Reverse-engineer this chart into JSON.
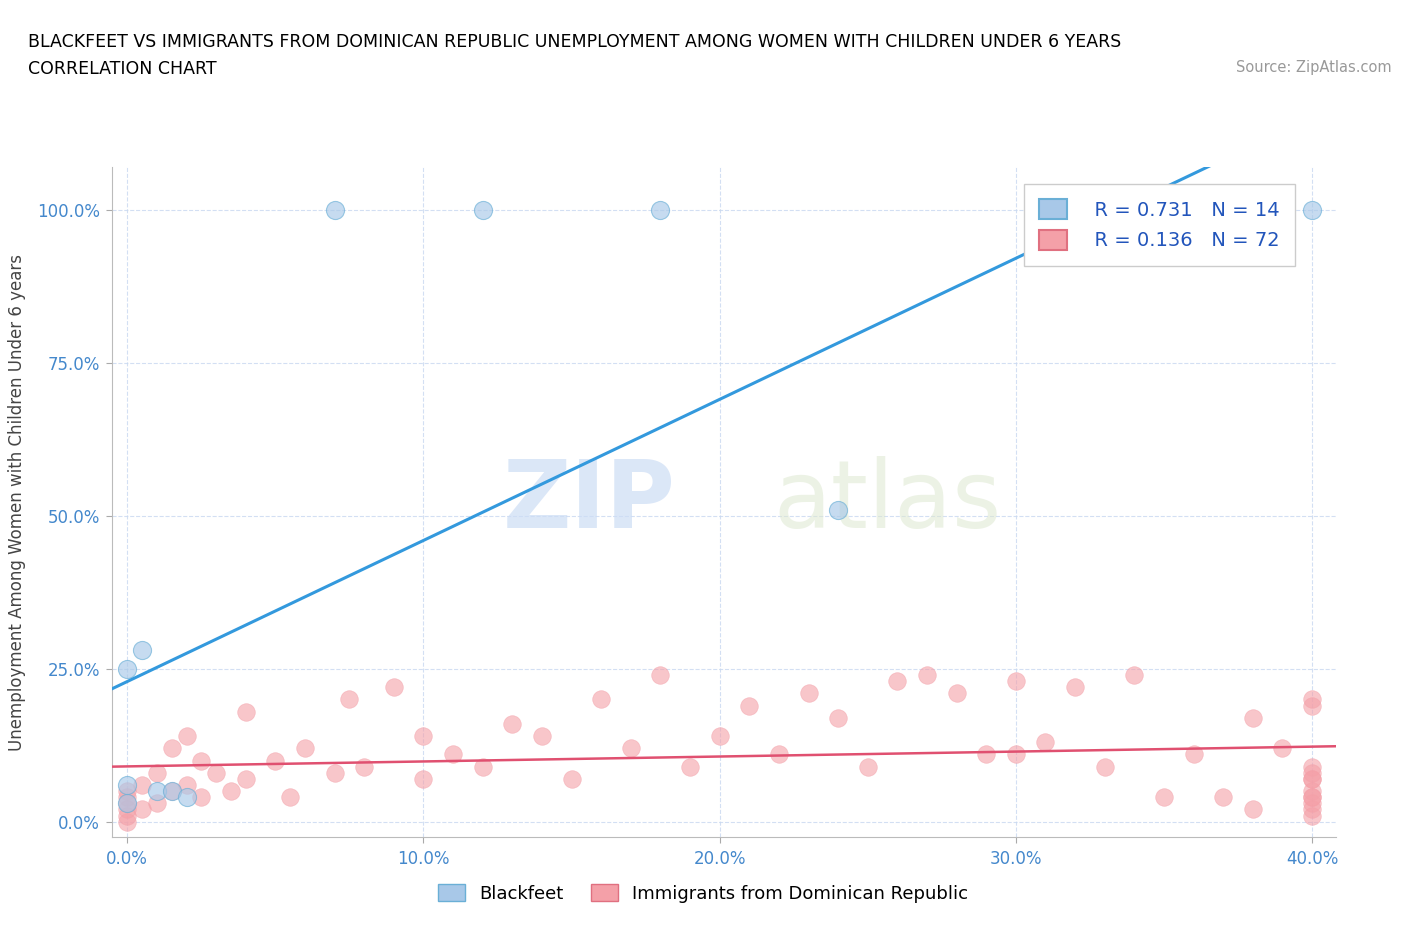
{
  "title_line1": "BLACKFEET VS IMMIGRANTS FROM DOMINICAN REPUBLIC UNEMPLOYMENT AMONG WOMEN WITH CHILDREN UNDER 6 YEARS",
  "title_line2": "CORRELATION CHART",
  "source": "Source: ZipAtlas.com",
  "ylabel": "Unemployment Among Women with Children Under 6 years",
  "xmin": -0.005,
  "xmax": 0.408,
  "ymin": -0.025,
  "ymax": 1.07,
  "xticks": [
    0.0,
    0.1,
    0.2,
    0.3,
    0.4
  ],
  "xtick_labels": [
    "0.0%",
    "10.0%",
    "20.0%",
    "30.0%",
    "40.0%"
  ],
  "yticks": [
    0.0,
    0.25,
    0.5,
    0.75,
    1.0
  ],
  "ytick_labels": [
    "0.0%",
    "25.0%",
    "50.0%",
    "75.0%",
    "100.0%"
  ],
  "blue_color": "#a8c8e8",
  "blue_edge": "#6aafd6",
  "pink_color": "#f4a0a8",
  "pink_edge": "#e07080",
  "trend_blue": "#3399dd",
  "trend_pink": "#e05070",
  "R_blue": 0.731,
  "N_blue": 14,
  "R_pink": 0.136,
  "N_pink": 72,
  "watermark_zip": "ZIP",
  "watermark_atlas": "atlas",
  "blue_scatter_x": [
    0.0,
    0.0,
    0.0,
    0.005,
    0.01,
    0.015,
    0.02,
    0.07,
    0.12,
    0.18,
    0.24,
    0.32,
    0.38,
    0.4
  ],
  "blue_scatter_y": [
    0.03,
    0.06,
    0.25,
    0.28,
    0.05,
    0.05,
    0.04,
    1.0,
    1.0,
    1.0,
    0.51,
    1.0,
    1.0,
    1.0
  ],
  "pink_scatter_x": [
    0.0,
    0.0,
    0.0,
    0.0,
    0.0,
    0.0,
    0.005,
    0.005,
    0.01,
    0.01,
    0.015,
    0.015,
    0.02,
    0.02,
    0.025,
    0.025,
    0.03,
    0.035,
    0.04,
    0.04,
    0.05,
    0.055,
    0.06,
    0.07,
    0.075,
    0.08,
    0.09,
    0.1,
    0.1,
    0.11,
    0.12,
    0.13,
    0.14,
    0.15,
    0.16,
    0.17,
    0.18,
    0.19,
    0.2,
    0.21,
    0.22,
    0.23,
    0.24,
    0.25,
    0.26,
    0.27,
    0.28,
    0.29,
    0.3,
    0.3,
    0.31,
    0.32,
    0.33,
    0.34,
    0.35,
    0.36,
    0.37,
    0.38,
    0.38,
    0.39,
    0.4,
    0.4,
    0.4,
    0.4,
    0.4,
    0.4,
    0.4,
    0.4,
    0.4,
    0.4,
    0.4,
    0.4
  ],
  "pink_scatter_y": [
    0.0,
    0.01,
    0.02,
    0.03,
    0.04,
    0.05,
    0.02,
    0.06,
    0.03,
    0.08,
    0.05,
    0.12,
    0.06,
    0.14,
    0.04,
    0.1,
    0.08,
    0.05,
    0.07,
    0.18,
    0.1,
    0.04,
    0.12,
    0.08,
    0.2,
    0.09,
    0.22,
    0.14,
    0.07,
    0.11,
    0.09,
    0.16,
    0.14,
    0.07,
    0.2,
    0.12,
    0.24,
    0.09,
    0.14,
    0.19,
    0.11,
    0.21,
    0.17,
    0.09,
    0.23,
    0.24,
    0.21,
    0.11,
    0.11,
    0.23,
    0.13,
    0.22,
    0.09,
    0.24,
    0.04,
    0.11,
    0.04,
    0.17,
    0.02,
    0.12,
    0.04,
    0.05,
    0.07,
    0.02,
    0.07,
    0.01,
    0.19,
    0.09,
    0.03,
    0.08,
    0.04,
    0.2
  ],
  "legend_labels": [
    "Blackfeet",
    "Immigrants from Dominican Republic"
  ],
  "legend_blue_text": "R = 0.731   N = 14",
  "legend_pink_text": "R = 0.136   N = 72"
}
